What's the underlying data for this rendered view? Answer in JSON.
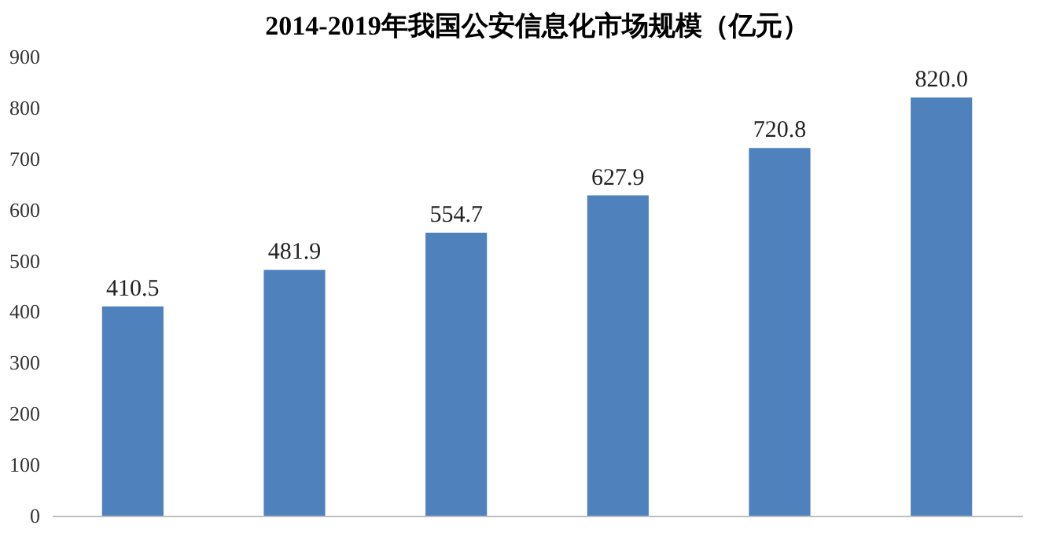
{
  "chart_data": {
    "type": "bar",
    "title": "2014-2019年我国公安信息化市场规模（亿元）",
    "categories": [
      null,
      null,
      null,
      null,
      null,
      null
    ],
    "values": [
      410.5,
      481.9,
      554.7,
      627.9,
      720.8,
      820.0
    ],
    "color": "#4f81bd",
    "ylim": [
      0,
      900
    ],
    "yticks": [
      0,
      100,
      200,
      300,
      400,
      500,
      600,
      700,
      800,
      900
    ],
    "value_labels": [
      "410.5",
      "481.9",
      "554.7",
      "627.9",
      "720.8",
      "820.0"
    ],
    "grid": false
  }
}
